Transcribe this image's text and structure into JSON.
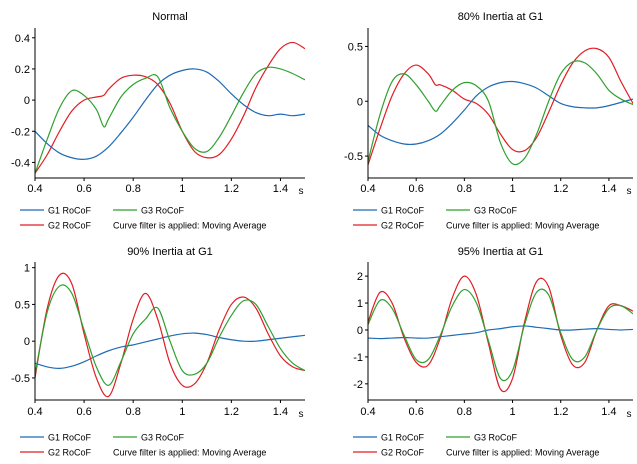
{
  "filter_note": "Curve filter is applied: Moving Average",
  "x_unit": "s",
  "colors": {
    "G1": "#1f6bb5",
    "G2": "#e01e24",
    "G3": "#2fa02f",
    "axis": "#000000"
  },
  "chart_data": [
    {
      "type": "line",
      "title": "Normal",
      "xlim": [
        0.4,
        1.5
      ],
      "ylim": [
        -0.5,
        0.45
      ],
      "xticks": [
        0.4,
        0.6,
        0.8,
        1,
        1.2,
        1.4
      ],
      "xtick_labels": [
        "0.4",
        "0.6",
        "0.8",
        "1",
        "1.2",
        "1.4"
      ],
      "yticks": [
        -0.4,
        -0.2,
        0,
        0.2,
        0.4
      ],
      "ytick_labels": [
        "-0.4",
        "-0.2",
        "0",
        "0.2",
        "0.4"
      ],
      "series": [
        {
          "name": "G1 RoCoF",
          "key": "G1",
          "x": [
            0.4,
            0.45,
            0.5,
            0.55,
            0.6,
            0.65,
            0.7,
            0.75,
            0.8,
            0.85,
            0.9,
            0.95,
            1.0,
            1.05,
            1.1,
            1.15,
            1.2,
            1.25,
            1.3,
            1.35,
            1.4,
            1.45,
            1.5
          ],
          "y": [
            -0.2,
            -0.28,
            -0.34,
            -0.37,
            -0.38,
            -0.36,
            -0.3,
            -0.21,
            -0.11,
            0.0,
            0.1,
            0.16,
            0.19,
            0.2,
            0.18,
            0.12,
            0.04,
            -0.03,
            -0.08,
            -0.1,
            -0.09,
            -0.1,
            -0.09
          ]
        },
        {
          "name": "G2 RoCoF",
          "key": "G2",
          "x": [
            0.4,
            0.45,
            0.5,
            0.55,
            0.6,
            0.65,
            0.68,
            0.7,
            0.75,
            0.8,
            0.85,
            0.9,
            0.95,
            1.0,
            1.05,
            1.1,
            1.15,
            1.2,
            1.25,
            1.3,
            1.35,
            1.4,
            1.45,
            1.5
          ],
          "y": [
            -0.47,
            -0.35,
            -0.2,
            -0.07,
            0.0,
            0.02,
            0.03,
            0.07,
            0.14,
            0.16,
            0.15,
            0.1,
            -0.02,
            -0.2,
            -0.33,
            -0.37,
            -0.35,
            -0.25,
            -0.1,
            0.08,
            0.22,
            0.33,
            0.37,
            0.33
          ]
        },
        {
          "name": "G3 RoCoF",
          "key": "G3",
          "x": [
            0.4,
            0.45,
            0.5,
            0.55,
            0.6,
            0.65,
            0.68,
            0.7,
            0.75,
            0.8,
            0.85,
            0.9,
            0.95,
            1.0,
            1.05,
            1.1,
            1.15,
            1.2,
            1.25,
            1.3,
            1.35,
            1.4,
            1.45,
            1.5
          ],
          "y": [
            -0.47,
            -0.25,
            -0.05,
            0.06,
            0.03,
            -0.06,
            -0.17,
            -0.12,
            0.02,
            0.1,
            0.14,
            0.15,
            -0.05,
            -0.2,
            -0.31,
            -0.33,
            -0.24,
            -0.1,
            0.05,
            0.17,
            0.21,
            0.2,
            0.17,
            0.13
          ]
        }
      ]
    },
    {
      "type": "line",
      "title": "80% Inertia at G1",
      "xlim": [
        0.4,
        1.5
      ],
      "ylim": [
        -0.7,
        0.65
      ],
      "xticks": [
        0.4,
        0.6,
        0.8,
        1,
        1.2,
        1.4
      ],
      "xtick_labels": [
        "0.4",
        "0.6",
        "0.8",
        "1",
        "1.2",
        "1.4"
      ],
      "yticks": [
        -0.5,
        0,
        0.5
      ],
      "ytick_labels": [
        "-0.5",
        "0",
        "0.5"
      ],
      "series": [
        {
          "name": "G1 RoCoF",
          "key": "G1",
          "x": [
            0.4,
            0.45,
            0.5,
            0.55,
            0.6,
            0.65,
            0.7,
            0.75,
            0.8,
            0.85,
            0.9,
            0.95,
            1.0,
            1.05,
            1.1,
            1.15,
            1.2,
            1.25,
            1.3,
            1.35,
            1.4,
            1.45,
            1.5
          ],
          "y": [
            -0.22,
            -0.31,
            -0.36,
            -0.39,
            -0.39,
            -0.36,
            -0.3,
            -0.2,
            -0.08,
            0.05,
            0.13,
            0.17,
            0.18,
            0.16,
            0.12,
            0.05,
            -0.02,
            -0.05,
            -0.06,
            -0.06,
            -0.04,
            -0.01,
            0.02
          ]
        },
        {
          "name": "G2 RoCoF",
          "key": "G2",
          "x": [
            0.4,
            0.45,
            0.5,
            0.55,
            0.6,
            0.65,
            0.68,
            0.7,
            0.75,
            0.8,
            0.85,
            0.9,
            0.95,
            1.0,
            1.05,
            1.1,
            1.15,
            1.2,
            1.25,
            1.3,
            1.35,
            1.4,
            1.45,
            1.5
          ],
          "y": [
            -0.58,
            -0.25,
            0.05,
            0.25,
            0.33,
            0.25,
            0.15,
            0.15,
            0.1,
            0.02,
            -0.02,
            -0.12,
            -0.3,
            -0.44,
            -0.45,
            -0.33,
            -0.1,
            0.15,
            0.35,
            0.46,
            0.48,
            0.4,
            0.18,
            -0.02
          ]
        },
        {
          "name": "G3 RoCoF",
          "key": "G3",
          "x": [
            0.4,
            0.45,
            0.5,
            0.55,
            0.6,
            0.65,
            0.68,
            0.7,
            0.75,
            0.8,
            0.85,
            0.9,
            0.95,
            1.0,
            1.05,
            1.1,
            1.15,
            1.2,
            1.25,
            1.3,
            1.35,
            1.4,
            1.45,
            1.5
          ],
          "y": [
            -0.55,
            -0.12,
            0.18,
            0.25,
            0.15,
            0.0,
            -0.09,
            -0.04,
            0.1,
            0.17,
            0.14,
            0.0,
            -0.38,
            -0.57,
            -0.52,
            -0.3,
            0.0,
            0.25,
            0.36,
            0.35,
            0.25,
            0.1,
            0.02,
            -0.03
          ]
        }
      ]
    },
    {
      "type": "line",
      "title": "90% Inertia at G1",
      "xlim": [
        0.4,
        1.5
      ],
      "ylim": [
        -0.8,
        1.05
      ],
      "xticks": [
        0.4,
        0.6,
        0.8,
        1,
        1.2,
        1.4
      ],
      "xtick_labels": [
        "0.4",
        "0.6",
        "0.8",
        "1",
        "1.2",
        "1.4"
      ],
      "yticks": [
        -0.5,
        0,
        0.5,
        1
      ],
      "ytick_labels": [
        "-0.5",
        "0",
        "0.5",
        "1"
      ],
      "series": [
        {
          "name": "G1 RoCoF",
          "key": "G1",
          "x": [
            0.4,
            0.45,
            0.5,
            0.55,
            0.6,
            0.65,
            0.7,
            0.75,
            0.8,
            0.85,
            0.9,
            0.95,
            1.0,
            1.05,
            1.1,
            1.15,
            1.2,
            1.25,
            1.3,
            1.35,
            1.4,
            1.45,
            1.5
          ],
          "y": [
            -0.3,
            -0.35,
            -0.37,
            -0.34,
            -0.28,
            -0.2,
            -0.13,
            -0.08,
            -0.05,
            -0.01,
            0.03,
            0.07,
            0.1,
            0.11,
            0.09,
            0.05,
            0.02,
            0.0,
            0.0,
            0.02,
            0.04,
            0.06,
            0.08
          ]
        },
        {
          "name": "G2 RoCoF",
          "key": "G2",
          "x": [
            0.4,
            0.45,
            0.5,
            0.55,
            0.6,
            0.65,
            0.7,
            0.75,
            0.8,
            0.85,
            0.9,
            0.95,
            1.0,
            1.05,
            1.1,
            1.15,
            1.2,
            1.25,
            1.3,
            1.35,
            1.4,
            1.45,
            1.5
          ],
          "y": [
            -0.5,
            0.45,
            0.9,
            0.78,
            0.1,
            -0.5,
            -0.75,
            -0.3,
            0.3,
            0.65,
            0.3,
            -0.3,
            -0.6,
            -0.58,
            -0.3,
            0.15,
            0.5,
            0.6,
            0.45,
            0.1,
            -0.2,
            -0.35,
            -0.4
          ]
        },
        {
          "name": "G3 RoCoF",
          "key": "G3",
          "x": [
            0.4,
            0.45,
            0.5,
            0.55,
            0.6,
            0.65,
            0.7,
            0.75,
            0.8,
            0.85,
            0.9,
            0.95,
            1.0,
            1.05,
            1.1,
            1.15,
            1.2,
            1.25,
            1.3,
            1.35,
            1.4,
            1.45,
            1.5
          ],
          "y": [
            -0.45,
            0.4,
            0.75,
            0.65,
            0.15,
            -0.35,
            -0.6,
            -0.28,
            0.1,
            0.3,
            0.45,
            0.0,
            -0.4,
            -0.45,
            -0.3,
            0.05,
            0.35,
            0.55,
            0.5,
            0.2,
            -0.1,
            -0.3,
            -0.4
          ]
        }
      ]
    },
    {
      "type": "line",
      "title": "95% Inertia at G1",
      "xlim": [
        0.4,
        1.5
      ],
      "ylim": [
        -2.6,
        2.45
      ],
      "xticks": [
        0.4,
        0.6,
        0.8,
        1,
        1.2,
        1.4
      ],
      "xtick_labels": [
        "0.4",
        "0.6",
        "0.8",
        "1",
        "1.2",
        "1.4"
      ],
      "yticks": [
        -2,
        -1,
        0,
        1,
        2
      ],
      "ytick_labels": [
        "-2",
        "-1",
        "0",
        "1",
        "2"
      ],
      "series": [
        {
          "name": "G1 RoCoF",
          "key": "G1",
          "x": [
            0.4,
            0.45,
            0.5,
            0.55,
            0.6,
            0.65,
            0.7,
            0.75,
            0.8,
            0.85,
            0.9,
            0.95,
            1.0,
            1.05,
            1.1,
            1.15,
            1.2,
            1.25,
            1.3,
            1.35,
            1.4,
            1.45,
            1.5
          ],
          "y": [
            -0.3,
            -0.32,
            -0.3,
            -0.28,
            -0.3,
            -0.3,
            -0.25,
            -0.2,
            -0.15,
            -0.1,
            0.0,
            0.05,
            0.12,
            0.15,
            0.1,
            0.05,
            0.0,
            0.0,
            0.03,
            0.05,
            0.02,
            0.0,
            0.02
          ]
        },
        {
          "name": "G2 RoCoF",
          "key": "G2",
          "x": [
            0.4,
            0.45,
            0.5,
            0.55,
            0.6,
            0.65,
            0.7,
            0.75,
            0.8,
            0.85,
            0.9,
            0.95,
            1.0,
            1.05,
            1.1,
            1.15,
            1.2,
            1.25,
            1.3,
            1.35,
            1.4,
            1.45,
            1.5
          ],
          "y": [
            0.3,
            1.4,
            1.0,
            -0.3,
            -1.2,
            -1.3,
            -0.3,
            1.2,
            2.0,
            1.3,
            -0.5,
            -2.2,
            -1.8,
            0.3,
            1.8,
            1.6,
            -0.2,
            -1.3,
            -1.2,
            0.0,
            0.9,
            0.9,
            0.7
          ]
        },
        {
          "name": "G3 RoCoF",
          "key": "G3",
          "x": [
            0.4,
            0.45,
            0.5,
            0.55,
            0.6,
            0.65,
            0.7,
            0.75,
            0.8,
            0.85,
            0.9,
            0.95,
            1.0,
            1.05,
            1.1,
            1.15,
            1.2,
            1.25,
            1.3,
            1.35,
            1.4,
            1.45,
            1.5
          ],
          "y": [
            0.2,
            1.1,
            0.8,
            -0.2,
            -1.1,
            -1.1,
            -0.2,
            0.9,
            1.5,
            1.0,
            -0.4,
            -1.8,
            -1.5,
            0.2,
            1.4,
            1.3,
            -0.1,
            -1.1,
            -1.0,
            0.0,
            0.8,
            0.9,
            0.6
          ]
        }
      ]
    }
  ]
}
